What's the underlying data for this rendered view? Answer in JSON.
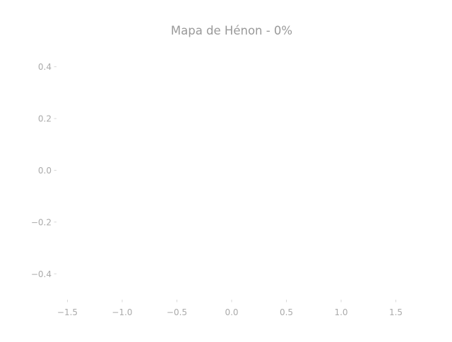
{
  "chart_data": {
    "type": "scatter",
    "title": "Mapa de Hénon - 0%",
    "xlabel": "",
    "ylabel": "",
    "xlim": [
      -1.6,
      1.6
    ],
    "ylim": [
      -0.5,
      0.5
    ],
    "x_ticks": [
      {
        "value": -1.5,
        "label": "−1.5"
      },
      {
        "value": -1.0,
        "label": "−1.0"
      },
      {
        "value": -0.5,
        "label": "−0.5"
      },
      {
        "value": 0.0,
        "label": "0.0"
      },
      {
        "value": 0.5,
        "label": "0.5"
      },
      {
        "value": 1.0,
        "label": "1.0"
      },
      {
        "value": 1.5,
        "label": "1.5"
      }
    ],
    "y_ticks": [
      {
        "value": 0.4,
        "label": "0.4"
      },
      {
        "value": 0.2,
        "label": "0.2"
      },
      {
        "value": 0.0,
        "label": "0.0"
      },
      {
        "value": -0.2,
        "label": "−0.2"
      },
      {
        "value": -0.4,
        "label": "−0.4"
      }
    ],
    "grid": false,
    "series": [
      {
        "x": [],
        "y": []
      }
    ]
  }
}
